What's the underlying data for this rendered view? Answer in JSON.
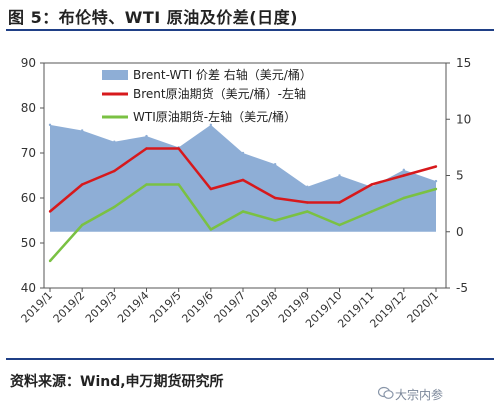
{
  "header": {
    "title": "图 5：布伦特、WTI 原油及价差(日度)"
  },
  "footer": {
    "source": "资料来源：Wind,申万期货研究所",
    "watermark": "大宗内参"
  },
  "chart_data": {
    "type": "line",
    "x": [
      "2019/1",
      "2019/2",
      "2019/3",
      "2019/4",
      "2019/5",
      "2019/6",
      "2019/7",
      "2019/8",
      "2019/9",
      "2019/10",
      "2019/11",
      "2019/12",
      "2020/1"
    ],
    "y_left_lim": [
      40,
      90
    ],
    "y_left_ticks": [
      40,
      50,
      60,
      70,
      80,
      90
    ],
    "y_right_lim": [
      -5,
      15
    ],
    "y_right_ticks": [
      -5,
      0,
      5,
      10,
      15
    ],
    "grid": false,
    "legend_position": "top",
    "series": [
      {
        "name": "Brent-WTI 价差 右轴（美元/桶）",
        "type": "area",
        "axis": "right",
        "color": "#8eaed6",
        "values": [
          9.5,
          9.0,
          8.0,
          8.5,
          7.5,
          9.5,
          7.0,
          6.0,
          4.0,
          5.0,
          4.0,
          5.5,
          4.5
        ]
      },
      {
        "name": "Brent原油期货（美元/桶）-左轴",
        "type": "line",
        "axis": "left",
        "color": "#d7191c",
        "values": [
          57,
          63,
          66,
          71,
          71,
          62,
          64,
          60,
          59,
          59,
          63,
          65,
          67
        ]
      },
      {
        "name": "WTI原油期货-左轴（美元/桶）",
        "type": "line",
        "axis": "left",
        "color": "#7ac143",
        "values": [
          46,
          54,
          58,
          63,
          63,
          53,
          57,
          55,
          57,
          54,
          57,
          60,
          62
        ]
      }
    ]
  }
}
